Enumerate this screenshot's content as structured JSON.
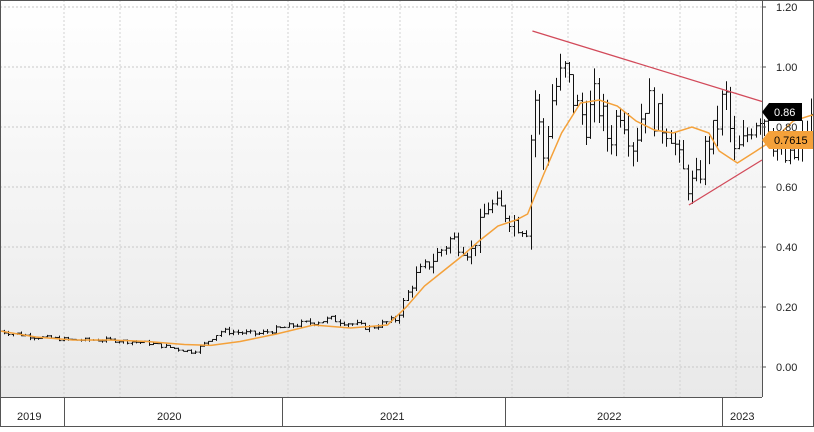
{
  "chart_data": {
    "type": "bar",
    "title": "",
    "xlabel": "",
    "ylabel": "",
    "ylim": [
      -0.03,
      1.2
    ],
    "y_ticks": [
      "0.00",
      "0.20",
      "0.40",
      "0.60",
      "0.80",
      "1.00",
      "1.20"
    ],
    "y_tick_values": [
      0.0,
      0.2,
      0.4,
      0.6,
      0.8,
      1.0,
      1.2
    ],
    "x_year_labels": [
      "2019",
      "2020",
      "2021",
      "2022",
      "2023"
    ],
    "grid": true,
    "x_time_range": [
      "2019-01",
      "2023-03"
    ],
    "bar_style": "weekly OHLC bars, black",
    "price_badge": {
      "label": "0.86",
      "value": 0.86,
      "color": "#000000"
    },
    "ma_badge": {
      "label": "0.7615",
      "value": 0.7615,
      "color": "#f4a13a"
    },
    "ma_series": {
      "color": "#f4a13a",
      "points": [
        [
          "2019-01-01",
          0.12
        ],
        [
          "2019-03-01",
          0.1
        ],
        [
          "2019-05-01",
          0.09
        ],
        [
          "2019-07-01",
          0.09
        ],
        [
          "2019-09-01",
          0.085
        ],
        [
          "2019-11-01",
          0.075
        ],
        [
          "2019-12-15",
          0.072
        ],
        [
          "2020-02-01",
          0.085
        ],
        [
          "2020-04-01",
          0.11
        ],
        [
          "2020-06-01",
          0.14
        ],
        [
          "2020-08-01",
          0.13
        ],
        [
          "2020-10-01",
          0.14
        ],
        [
          "2020-11-01",
          0.2
        ],
        [
          "2020-12-01",
          0.27
        ],
        [
          "2021-01-01",
          0.32
        ],
        [
          "2021-02-01",
          0.37
        ],
        [
          "2021-03-01",
          0.42
        ],
        [
          "2021-04-01",
          0.47
        ],
        [
          "2021-05-01",
          0.49
        ],
        [
          "2021-05-20",
          0.51
        ],
        [
          "2021-06-15",
          0.64
        ],
        [
          "2021-07-15",
          0.78
        ],
        [
          "2021-08-15",
          0.88
        ],
        [
          "2021-09-15",
          0.89
        ],
        [
          "2021-10-15",
          0.87
        ],
        [
          "2021-11-15",
          0.82
        ],
        [
          "2021-12-15",
          0.79
        ],
        [
          "2022-01-15",
          0.78
        ],
        [
          "2022-02-15",
          0.8
        ],
        [
          "2022-03-15",
          0.78
        ],
        [
          "2022-04-01",
          0.72
        ],
        [
          "2022-05-01",
          0.68
        ],
        [
          "2022-06-01",
          0.72
        ],
        [
          "2022-07-01",
          0.76
        ],
        [
          "2022-08-01",
          0.82
        ],
        [
          "2022-09-01",
          0.84
        ],
        [
          "2022-10-01",
          0.81
        ],
        [
          "2022-11-01",
          0.76
        ],
        [
          "2022-12-01",
          0.74
        ],
        [
          "2023-01-01",
          0.74
        ],
        [
          "2023-02-10",
          0.7615
        ]
      ]
    },
    "trendlines": [
      {
        "name": "upper",
        "color": "#d24a5a",
        "from": [
          "2021-05-28",
          1.12
        ],
        "to": [
          "2023-03-15",
          0.885
        ]
      },
      {
        "name": "lower",
        "color": "#d24a5a",
        "from": [
          "2022-02-10",
          0.54
        ],
        "to": [
          "2023-03-15",
          0.69
        ]
      }
    ],
    "ohlc_anchors": [
      [
        "2019-01-01",
        0.12
      ],
      [
        "2019-03-01",
        0.1
      ],
      [
        "2019-05-01",
        0.09
      ],
      [
        "2019-07-01",
        0.09
      ],
      [
        "2019-09-01",
        0.08
      ],
      [
        "2019-11-15",
        0.05
      ],
      [
        "2020-01-01",
        0.12
      ],
      [
        "2020-03-01",
        0.11
      ],
      [
        "2020-05-01",
        0.14
      ],
      [
        "2020-07-01",
        0.16
      ],
      [
        "2020-09-01",
        0.13
      ],
      [
        "2020-10-15",
        0.16
      ],
      [
        "2020-11-15",
        0.3
      ],
      [
        "2020-12-15",
        0.36
      ],
      [
        "2021-01-15",
        0.43
      ],
      [
        "2021-02-15",
        0.38
      ],
      [
        "2021-03-15",
        0.54
      ],
      [
        "2021-04-10",
        0.52
      ],
      [
        "2021-04-30",
        0.48
      ],
      [
        "2021-05-20",
        0.46
      ],
      [
        "2021-05-28",
        0.95
      ],
      [
        "2021-06-15",
        0.7
      ],
      [
        "2021-07-01",
        0.92
      ],
      [
        "2021-07-20",
        0.98
      ],
      [
        "2021-08-10",
        0.86
      ],
      [
        "2021-08-25",
        0.82
      ],
      [
        "2021-09-10",
        0.9
      ],
      [
        "2021-10-01",
        0.75
      ],
      [
        "2021-10-20",
        0.88
      ],
      [
        "2021-11-10",
        0.74
      ],
      [
        "2021-12-01",
        0.9
      ],
      [
        "2021-12-20",
        0.82
      ],
      [
        "2022-01-10",
        0.8
      ],
      [
        "2022-01-25",
        0.68
      ],
      [
        "2022-02-10",
        0.6
      ],
      [
        "2022-02-25",
        0.62
      ],
      [
        "2022-03-10",
        0.74
      ],
      [
        "2022-03-25",
        0.78
      ],
      [
        "2022-04-10",
        0.92
      ],
      [
        "2022-04-25",
        0.7
      ],
      [
        "2022-05-10",
        0.74
      ],
      [
        "2022-05-25",
        0.82
      ],
      [
        "2022-06-10",
        0.86
      ],
      [
        "2022-06-25",
        0.78
      ],
      [
        "2022-07-10",
        0.7
      ],
      [
        "2022-07-25",
        0.68
      ],
      [
        "2022-08-10",
        0.72
      ],
      [
        "2022-08-25",
        0.8
      ],
      [
        "2022-09-10",
        0.84
      ],
      [
        "2022-09-25",
        0.86
      ]
    ]
  }
}
